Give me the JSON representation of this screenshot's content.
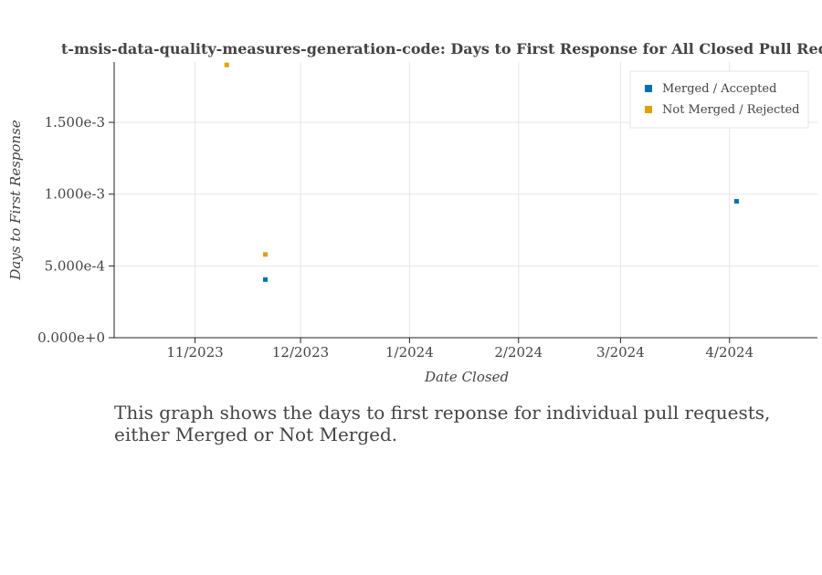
{
  "toolbar": {
    "tools": [
      "pan-icon",
      "box-zoom-icon",
      "wheel-zoom-icon",
      "save-icon",
      "reset-icon",
      "help-icon",
      "bokeh-logo-icon"
    ],
    "active_tool": "pan-icon",
    "accent_color": "#26aae1"
  },
  "chart_data": {
    "type": "scatter",
    "title": "t-msis-data-quality-measures-generation-code: Days to First Response for All Closed Pull Requests",
    "xlabel": "Date Closed",
    "ylabel": "Days to First Response",
    "x_type": "datetime",
    "xlim": [
      "2023-10-09",
      "2024-04-26"
    ],
    "ylim": [
      0,
      0.00192
    ],
    "x_ticks": [
      {
        "value": "2023-11-01",
        "label": "11/2023"
      },
      {
        "value": "2023-12-01",
        "label": "12/2023"
      },
      {
        "value": "2024-01-01",
        "label": "1/2024"
      },
      {
        "value": "2024-02-01",
        "label": "2/2024"
      },
      {
        "value": "2024-03-01",
        "label": "3/2024"
      },
      {
        "value": "2024-04-01",
        "label": "4/2024"
      }
    ],
    "y_ticks": [
      {
        "value": 0,
        "label": "0.000e+0"
      },
      {
        "value": 0.0005,
        "label": "5.000e-4"
      },
      {
        "value": 0.001,
        "label": "1.000e-3"
      },
      {
        "value": 0.0015,
        "label": "1.500e-3"
      }
    ],
    "grid": true,
    "legend_position": "top-right",
    "series": [
      {
        "name": "Merged / Accepted",
        "color": "#0072b2",
        "points": [
          {
            "x": "2023-11-21",
            "y": 0.000405
          },
          {
            "x": "2024-04-03",
            "y": 0.00095
          }
        ]
      },
      {
        "name": "Not Merged / Rejected",
        "color": "#e69f00",
        "points": [
          {
            "x": "2023-11-10",
            "y": 0.0019
          },
          {
            "x": "2023-11-21",
            "y": 0.00058
          }
        ]
      }
    ]
  },
  "caption": "This graph shows the days to first reponse for individual pull requests, either Merged or Not Merged."
}
